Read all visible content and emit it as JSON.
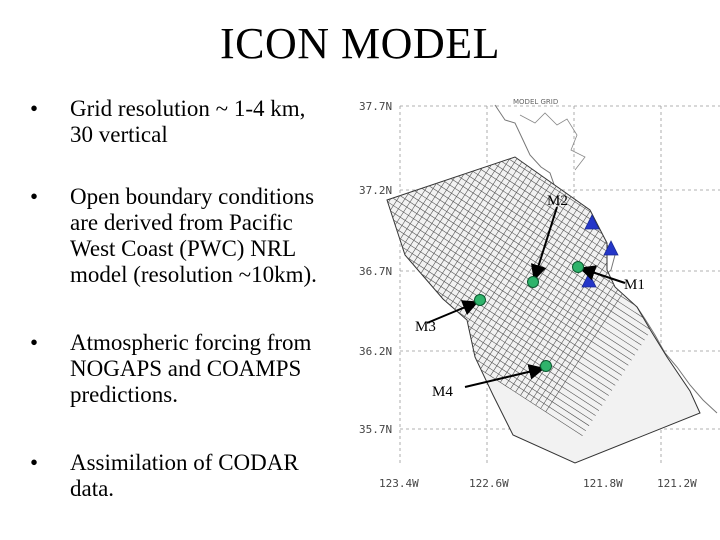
{
  "slide": {
    "title": "ICON MODEL",
    "bullet_symbol": "•",
    "bullets": [
      "Grid resolution ~ 1-4 km,\n30 vertical",
      "Open boundary conditions\nare derived from Pacific\nWest Coast (PWC)  NRL\nmodel (resolution ~10km).",
      "Atmospheric forcing from\n NOGAPS and COAMPS\npredictions.",
      "Assimilation of  CODAR\ndata."
    ]
  },
  "map": {
    "header": "MODEL GRID",
    "lat_labels": [
      "37.7N",
      "37.2N",
      "36.7N",
      "36.2N",
      "35.7N"
    ],
    "lon_labels": [
      "123.4W",
      "122.6W",
      "121.8W",
      "121.2W"
    ],
    "moorings": [
      {
        "label": "M1"
      },
      {
        "label": "M2"
      },
      {
        "label": "M3"
      },
      {
        "label": "M4"
      }
    ],
    "colors": {
      "mooring": "#2fb36b",
      "codar": "#2436c8",
      "grid": "#555555",
      "coast": "#777777"
    }
  }
}
